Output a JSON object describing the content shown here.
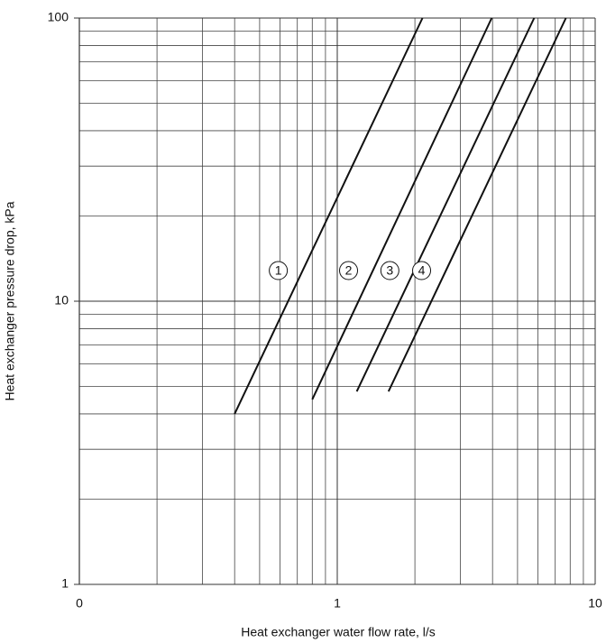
{
  "chart_data": {
    "type": "line",
    "xlabel": "Heat exchanger water flow rate, l/s",
    "ylabel": "Heat exchanger pressure drop, kPa",
    "xscale": "log",
    "yscale": "log",
    "xlim": [
      0.1,
      10
    ],
    "ylim": [
      1,
      100
    ],
    "xticks": [
      {
        "value": 0.1,
        "label": "0"
      },
      1,
      10
    ],
    "yticks": [
      1,
      10,
      100
    ],
    "grid": true,
    "minor_grid": true,
    "series": [
      {
        "name": "1",
        "color": "#111111",
        "x": [
          0.4,
          2.14
        ],
        "values": [
          4.0,
          100
        ]
      },
      {
        "name": "2",
        "color": "#111111",
        "x": [
          0.8,
          3.97
        ],
        "values": [
          4.5,
          100
        ]
      },
      {
        "name": "3",
        "color": "#111111",
        "x": [
          1.19,
          5.8
        ],
        "values": [
          4.8,
          100
        ]
      },
      {
        "name": "4",
        "color": "#111111",
        "x": [
          1.58,
          7.7
        ],
        "values": [
          4.8,
          100
        ]
      }
    ]
  }
}
